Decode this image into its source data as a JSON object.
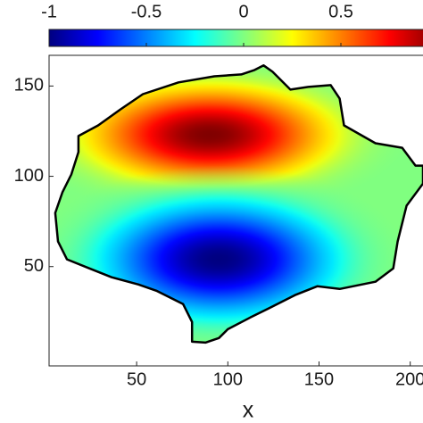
{
  "chart_data": {
    "type": "field",
    "xlabel": "x",
    "xlim": [
      2,
      207
    ],
    "ylim": [
      -5,
      167
    ],
    "xticks": [
      50,
      100,
      150,
      200
    ],
    "yticks": [
      50,
      100,
      150
    ],
    "colormap": "jet",
    "clim": [
      -1,
      1
    ],
    "cticks": [
      -1,
      -0.5,
      0,
      0.5
    ],
    "boundary": {
      "x": [
        5.4,
        9.3,
        14.2,
        18.1,
        18.1,
        28.9,
        41.2,
        53.4,
        73,
        92.6,
        107.4,
        114.7,
        119.6,
        124.5,
        134.3,
        144.1,
        156.4,
        161.3,
        163.7,
        180.9,
        195.6,
        202.9,
        207,
        207,
        198,
        193.1,
        190.7,
        180.9,
        161.3,
        149,
        136.8,
        122.1,
        112.3,
        100,
        95.1,
        87.7,
        80.4,
        80.4,
        75.5,
        60.8,
        51,
        36.3,
        24,
        11.8,
        6.9
      ],
      "y": [
        79.7,
        91.1,
        101,
        113.4,
        122.3,
        128.2,
        137.1,
        145.5,
        152,
        155.4,
        156.4,
        158.9,
        161.4,
        157.9,
        148,
        149.5,
        150.5,
        143.1,
        128.2,
        118.3,
        115.8,
        105.9,
        105.9,
        96,
        83.7,
        63.9,
        49,
        41.6,
        37.6,
        39.1,
        34.2,
        26.7,
        21.8,
        15.3,
        10.4,
        7.9,
        8.4,
        19.3,
        29.2,
        36.6,
        40.1,
        44.1,
        49,
        54,
        63.9
      ]
    },
    "peaks": [
      {
        "x": 90,
        "y": 123,
        "value": 1,
        "spread_x": 42,
        "spread_y": 17
      },
      {
        "x": 95,
        "y": 54,
        "value": -1,
        "spread_x": 40,
        "spread_y": 20
      }
    ]
  }
}
